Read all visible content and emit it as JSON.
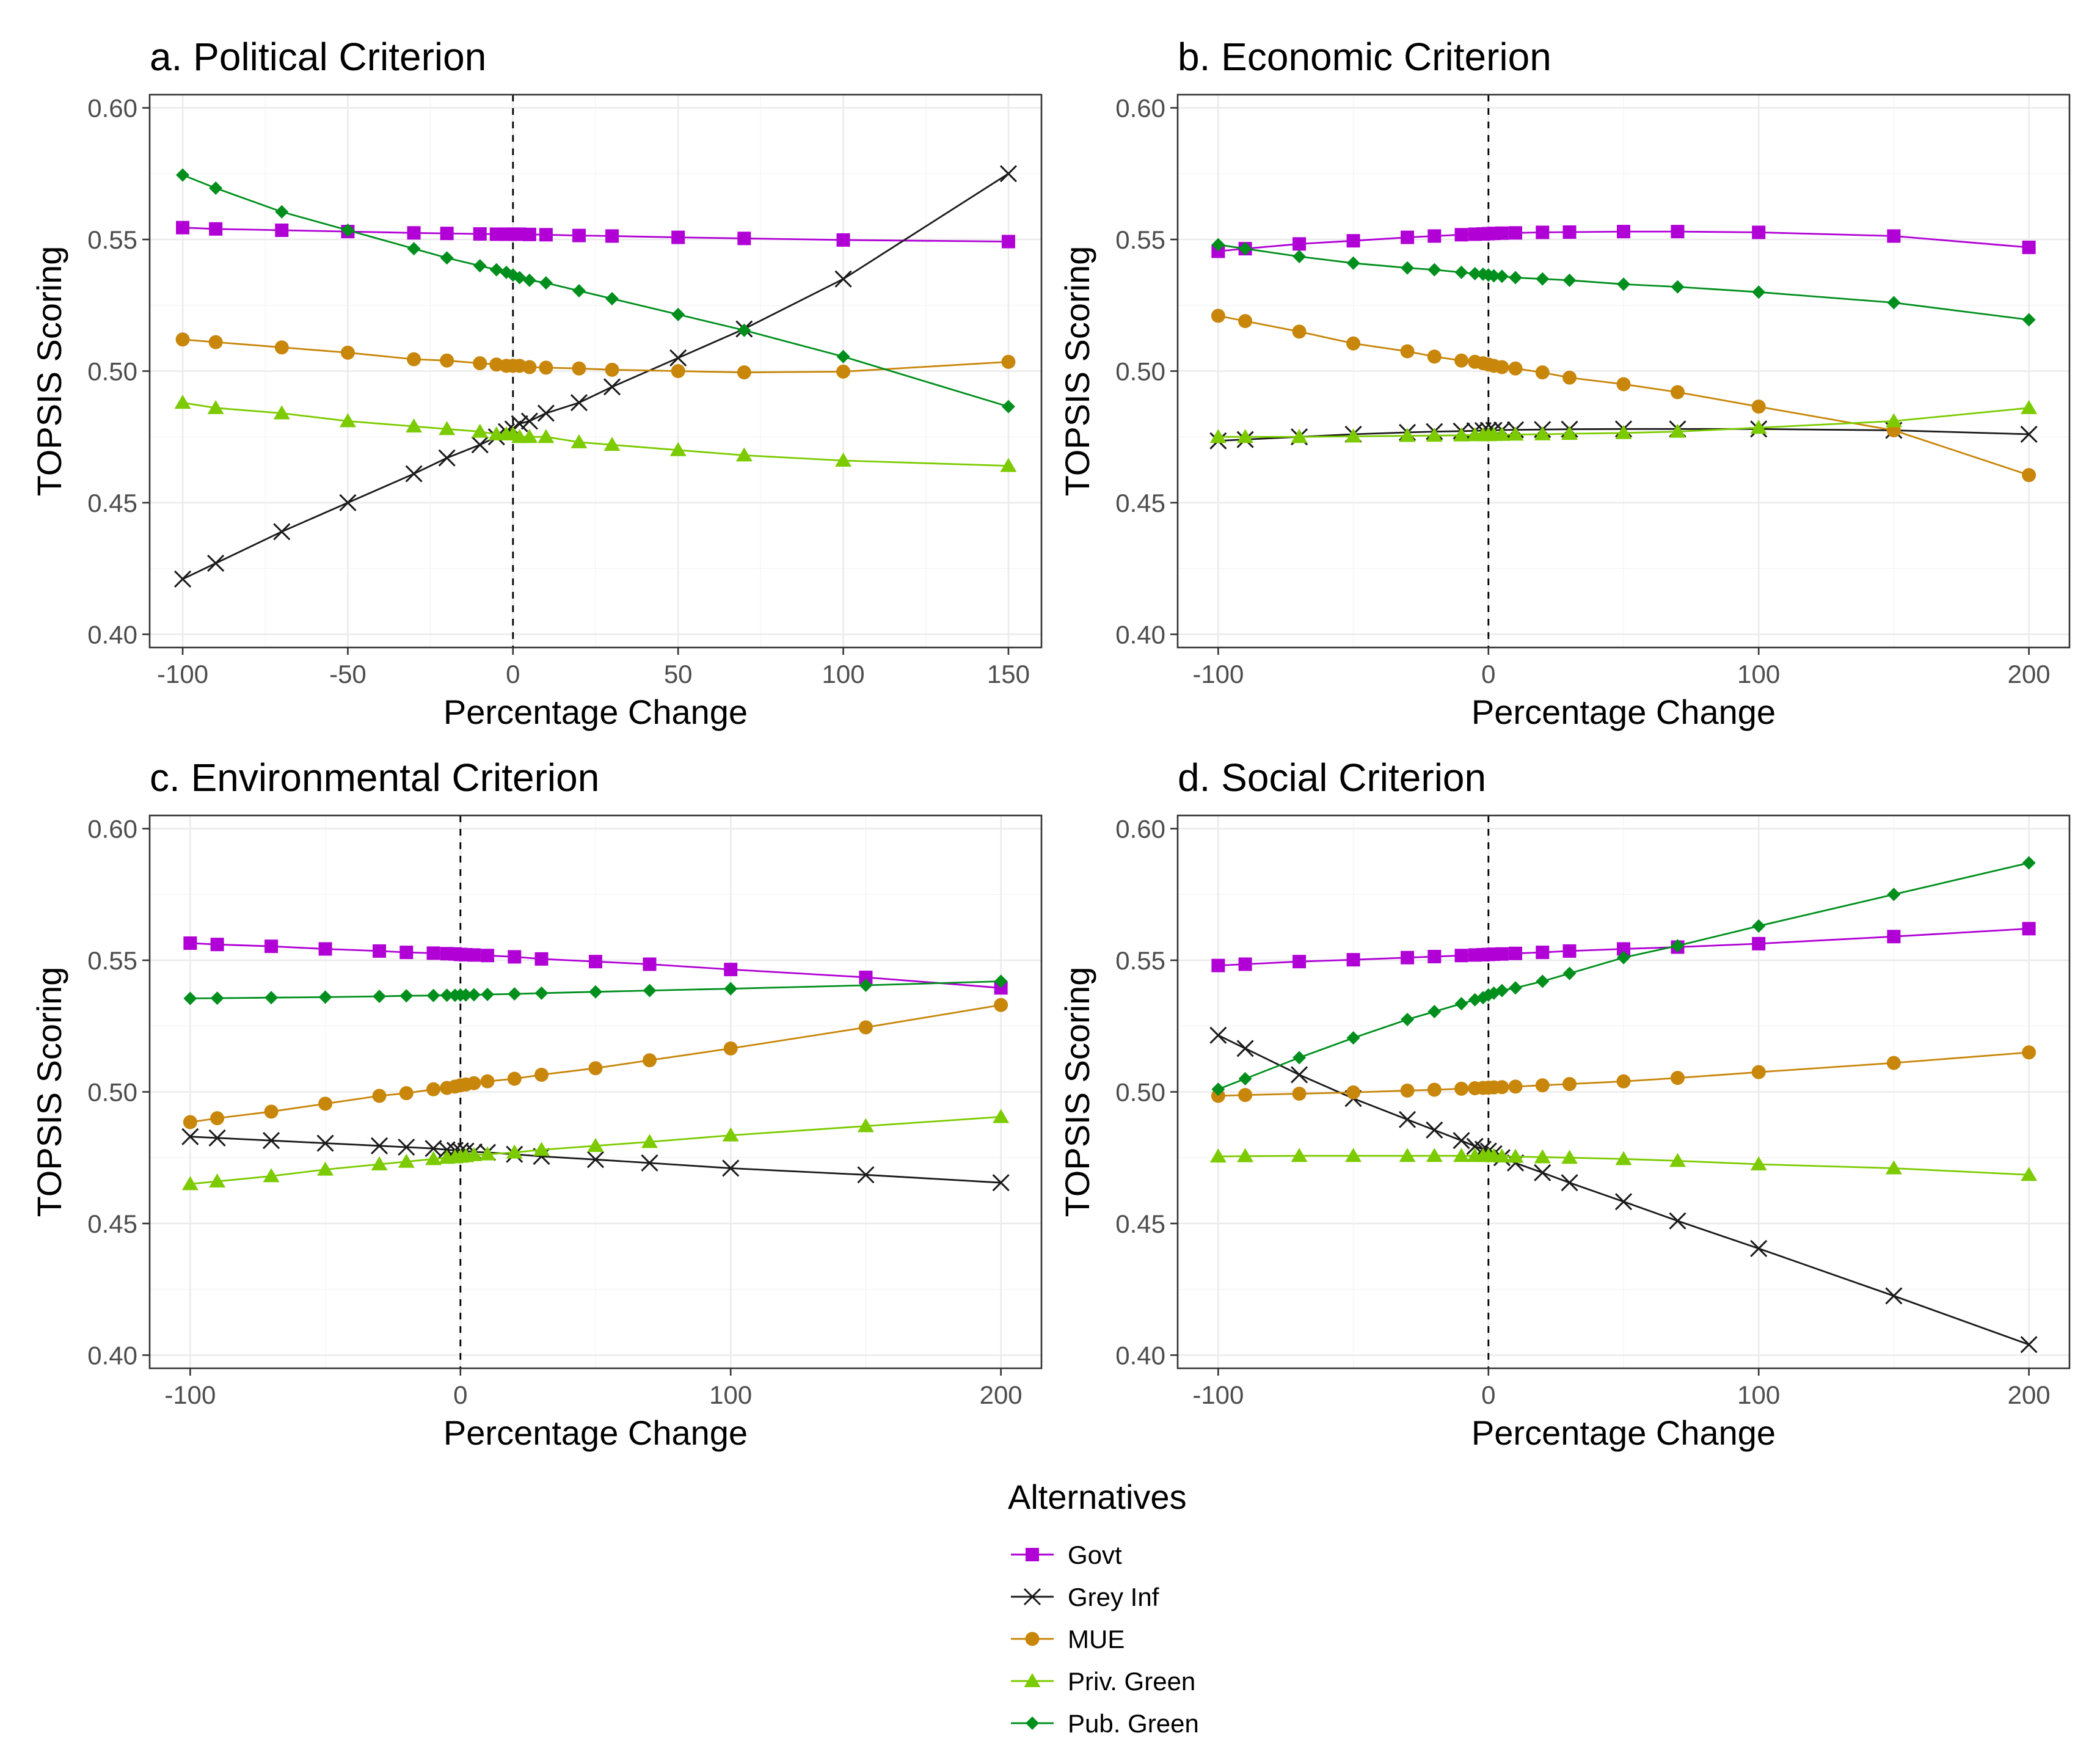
{
  "chart_data": [
    {
      "type": "line",
      "title": "a. Political Criterion",
      "xlabel": "Percentage Change",
      "ylabel": "TOPSIS Scoring",
      "xlim": [
        -110,
        160
      ],
      "ylim": [
        0.395,
        0.605
      ],
      "xticks": [
        -100,
        -50,
        0,
        50,
        100,
        150
      ],
      "xtick_labels": [
        "-100",
        "-50",
        "0",
        "50",
        "100",
        "150"
      ],
      "yticks": [
        0.4,
        0.45,
        0.5,
        0.55,
        0.6
      ],
      "ytick_labels": [
        "0.40",
        "0.45",
        "0.50",
        "0.55",
        "0.60"
      ],
      "vline": 0,
      "x": [
        -100,
        -90,
        -70,
        -50,
        -30,
        -20,
        -10,
        -5,
        -2,
        0,
        2,
        5,
        10,
        20,
        30,
        50,
        70,
        100,
        150
      ],
      "series": [
        {
          "name": "Govt",
          "values": [
            0.5545,
            0.554,
            0.5535,
            0.553,
            0.5525,
            0.5523,
            0.5521,
            0.552,
            0.552,
            0.552,
            0.552,
            0.5519,
            0.5518,
            0.5515,
            0.5513,
            0.5508,
            0.5504,
            0.5498,
            0.5492
          ]
        },
        {
          "name": "Grey Inf",
          "values": [
            0.421,
            0.427,
            0.439,
            0.45,
            0.461,
            0.467,
            0.472,
            0.475,
            0.477,
            0.478,
            0.48,
            0.481,
            0.484,
            0.488,
            0.494,
            0.505,
            0.516,
            0.535,
            0.575
          ]
        },
        {
          "name": "MUE",
          "values": [
            0.512,
            0.511,
            0.509,
            0.507,
            0.5045,
            0.504,
            0.503,
            0.5025,
            0.502,
            0.502,
            0.502,
            0.5015,
            0.5013,
            0.501,
            0.5005,
            0.5,
            0.4995,
            0.4998,
            0.5035
          ]
        },
        {
          "name": "Priv. Green",
          "values": [
            0.488,
            0.486,
            0.484,
            0.481,
            0.479,
            0.478,
            0.477,
            0.476,
            0.476,
            0.476,
            0.475,
            0.475,
            0.475,
            0.473,
            0.472,
            0.47,
            0.468,
            0.466,
            0.464
          ]
        },
        {
          "name": "Pub. Green",
          "values": [
            0.5745,
            0.5695,
            0.5605,
            0.5535,
            0.5465,
            0.543,
            0.54,
            0.5385,
            0.5375,
            0.5365,
            0.5355,
            0.5345,
            0.5335,
            0.5305,
            0.5275,
            0.5215,
            0.5155,
            0.5055,
            0.4865
          ]
        }
      ]
    },
    {
      "type": "line",
      "title": "b. Economic Criterion",
      "xlabel": "Percentage Change",
      "ylabel": "TOPSIS Scoring",
      "xlim": [
        -115,
        215
      ],
      "ylim": [
        0.395,
        0.605
      ],
      "xticks": [
        -100,
        0,
        100,
        200
      ],
      "xtick_labels": [
        "-100",
        "0",
        "100",
        "200"
      ],
      "yticks": [
        0.4,
        0.45,
        0.5,
        0.55,
        0.6
      ],
      "ytick_labels": [
        "0.40",
        "0.45",
        "0.50",
        "0.55",
        "0.60"
      ],
      "vline": 0,
      "x": [
        -100,
        -90,
        -70,
        -50,
        -30,
        -20,
        -10,
        -5,
        -2,
        0,
        2,
        5,
        10,
        20,
        30,
        50,
        70,
        100,
        150,
        200
      ],
      "series": [
        {
          "name": "Govt",
          "values": [
            0.5455,
            0.5465,
            0.5483,
            0.5495,
            0.5508,
            0.5513,
            0.5518,
            0.552,
            0.5521,
            0.5522,
            0.5523,
            0.5524,
            0.5525,
            0.5527,
            0.5528,
            0.553,
            0.553,
            0.5527,
            0.5513,
            0.547
          ]
        },
        {
          "name": "Grey Inf",
          "values": [
            0.4735,
            0.474,
            0.475,
            0.476,
            0.4767,
            0.477,
            0.4772,
            0.4773,
            0.4774,
            0.4775,
            0.4775,
            0.4776,
            0.4777,
            0.4778,
            0.4779,
            0.478,
            0.478,
            0.478,
            0.4775,
            0.476
          ]
        },
        {
          "name": "MUE",
          "values": [
            0.521,
            0.519,
            0.515,
            0.5105,
            0.5075,
            0.5055,
            0.504,
            0.5035,
            0.503,
            0.5025,
            0.502,
            0.5015,
            0.501,
            0.4995,
            0.4975,
            0.495,
            0.492,
            0.4865,
            0.4775,
            0.4605
          ]
        },
        {
          "name": "Priv. Green",
          "values": [
            0.475,
            0.475,
            0.475,
            0.4752,
            0.4754,
            0.4755,
            0.4756,
            0.4757,
            0.4757,
            0.4757,
            0.4758,
            0.4758,
            0.4759,
            0.476,
            0.4762,
            0.4765,
            0.477,
            0.4785,
            0.481,
            0.486
          ]
        },
        {
          "name": "Pub. Green",
          "values": [
            0.548,
            0.5465,
            0.5435,
            0.541,
            0.5392,
            0.5385,
            0.5375,
            0.537,
            0.5368,
            0.5365,
            0.5362,
            0.536,
            0.5355,
            0.535,
            0.5345,
            0.533,
            0.532,
            0.53,
            0.526,
            0.5195
          ]
        }
      ]
    },
    {
      "type": "line",
      "title": "c. Environmental Criterion",
      "xlabel": "Percentage Change",
      "ylabel": "TOPSIS Scoring",
      "xlim": [
        -115,
        215
      ],
      "ylim": [
        0.395,
        0.605
      ],
      "xticks": [
        -100,
        0,
        100,
        200
      ],
      "xtick_labels": [
        "-100",
        "0",
        "100",
        "200"
      ],
      "yticks": [
        0.4,
        0.45,
        0.5,
        0.55,
        0.6
      ],
      "ytick_labels": [
        "0.40",
        "0.45",
        "0.50",
        "0.55",
        "0.60"
      ],
      "vline": 0,
      "x": [
        -100,
        -90,
        -70,
        -50,
        -30,
        -20,
        -10,
        -5,
        -2,
        0,
        2,
        5,
        10,
        20,
        30,
        50,
        70,
        100,
        150,
        200
      ],
      "series": [
        {
          "name": "Govt",
          "values": [
            0.5565,
            0.556,
            0.5553,
            0.5543,
            0.5535,
            0.553,
            0.5527,
            0.5525,
            0.5524,
            0.5522,
            0.5521,
            0.552,
            0.5518,
            0.5513,
            0.5505,
            0.5495,
            0.5485,
            0.5465,
            0.5435,
            0.5395
          ]
        },
        {
          "name": "Grey Inf",
          "values": [
            0.483,
            0.4825,
            0.4815,
            0.4805,
            0.4795,
            0.479,
            0.4785,
            0.478,
            0.4778,
            0.4776,
            0.4775,
            0.4772,
            0.477,
            0.4763,
            0.4755,
            0.4743,
            0.473,
            0.471,
            0.4685,
            0.4655
          ]
        },
        {
          "name": "MUE",
          "values": [
            0.4885,
            0.49,
            0.4925,
            0.4955,
            0.4985,
            0.4995,
            0.501,
            0.5015,
            0.502,
            0.5025,
            0.5028,
            0.5033,
            0.504,
            0.505,
            0.5065,
            0.509,
            0.512,
            0.5165,
            0.5245,
            0.533
          ]
        },
        {
          "name": "Priv. Green",
          "values": [
            0.465,
            0.466,
            0.468,
            0.4705,
            0.4725,
            0.4735,
            0.4745,
            0.475,
            0.4752,
            0.4754,
            0.4756,
            0.476,
            0.4763,
            0.477,
            0.478,
            0.4795,
            0.481,
            0.4835,
            0.487,
            0.4905
          ]
        },
        {
          "name": "Pub. Green",
          "values": [
            0.5355,
            0.5356,
            0.5358,
            0.536,
            0.5363,
            0.5365,
            0.5366,
            0.5367,
            0.5367,
            0.5368,
            0.5368,
            0.5369,
            0.537,
            0.5372,
            0.5375,
            0.538,
            0.5385,
            0.5392,
            0.5405,
            0.542
          ]
        }
      ]
    },
    {
      "type": "line",
      "title": "d. Social Criterion",
      "xlabel": "Percentage Change",
      "ylabel": "TOPSIS Scoring",
      "xlim": [
        -115,
        215
      ],
      "ylim": [
        0.395,
        0.605
      ],
      "xticks": [
        -100,
        0,
        100,
        200
      ],
      "xtick_labels": [
        "-100",
        "0",
        "100",
        "200"
      ],
      "yticks": [
        0.4,
        0.45,
        0.5,
        0.55,
        0.6
      ],
      "ytick_labels": [
        "0.40",
        "0.45",
        "0.50",
        "0.55",
        "0.60"
      ],
      "vline": 0,
      "x": [
        -100,
        -90,
        -70,
        -50,
        -30,
        -20,
        -10,
        -5,
        -2,
        0,
        2,
        5,
        10,
        20,
        30,
        50,
        70,
        100,
        150,
        200
      ],
      "series": [
        {
          "name": "Govt",
          "values": [
            0.548,
            0.5485,
            0.5495,
            0.5502,
            0.551,
            0.5514,
            0.5518,
            0.552,
            0.5521,
            0.5522,
            0.5523,
            0.5524,
            0.5526,
            0.553,
            0.5535,
            0.5543,
            0.555,
            0.5563,
            0.559,
            0.562
          ]
        },
        {
          "name": "Grey Inf",
          "values": [
            0.5215,
            0.5165,
            0.5065,
            0.4975,
            0.4895,
            0.4855,
            0.4815,
            0.4793,
            0.4782,
            0.4775,
            0.4765,
            0.475,
            0.473,
            0.4693,
            0.4655,
            0.4583,
            0.451,
            0.4405,
            0.4225,
            0.404
          ]
        },
        {
          "name": "MUE",
          "values": [
            0.4985,
            0.4988,
            0.4993,
            0.4998,
            0.5005,
            0.5008,
            0.5012,
            0.5014,
            0.5015,
            0.5016,
            0.5017,
            0.5018,
            0.502,
            0.5025,
            0.503,
            0.504,
            0.5053,
            0.5075,
            0.511,
            0.515
          ]
        },
        {
          "name": "Priv. Green",
          "values": [
            0.4755,
            0.4756,
            0.4757,
            0.4757,
            0.4757,
            0.4757,
            0.4757,
            0.4757,
            0.4757,
            0.4757,
            0.4756,
            0.4755,
            0.4754,
            0.4752,
            0.475,
            0.4745,
            0.4738,
            0.4725,
            0.471,
            0.4685
          ]
        },
        {
          "name": "Pub. Green",
          "values": [
            0.501,
            0.505,
            0.513,
            0.5205,
            0.5275,
            0.5305,
            0.5335,
            0.535,
            0.5358,
            0.5368,
            0.5375,
            0.5385,
            0.5395,
            0.542,
            0.545,
            0.551,
            0.5555,
            0.563,
            0.575,
            0.587
          ]
        }
      ]
    }
  ],
  "legend": {
    "title": "Alternatives",
    "items": [
      {
        "name": "Govt",
        "color": "#b000d6",
        "shape": "square"
      },
      {
        "name": "Grey Inf",
        "color": "#1a1a1a",
        "shape": "cross"
      },
      {
        "name": "MUE",
        "color": "#c8860a",
        "shape": "circle"
      },
      {
        "name": "Priv. Green",
        "color": "#7ccb00",
        "shape": "triangle"
      },
      {
        "name": "Pub. Green",
        "color": "#008f1d",
        "shape": "diamond"
      }
    ]
  }
}
